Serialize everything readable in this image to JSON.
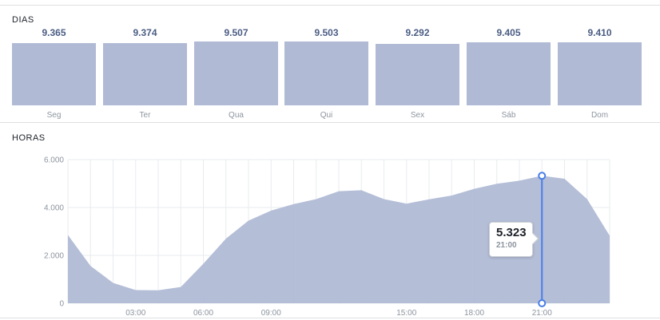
{
  "days_section": {
    "title": "DIAS",
    "days": [
      {
        "label": "Seg",
        "value": "9.365"
      },
      {
        "label": "Ter",
        "value": "9.374"
      },
      {
        "label": "Qua",
        "value": "9.507"
      },
      {
        "label": "Qui",
        "value": "9.503"
      },
      {
        "label": "Sex",
        "value": "9.292"
      },
      {
        "label": "Sáb",
        "value": "9.405"
      },
      {
        "label": "Dom",
        "value": "9.410"
      }
    ]
  },
  "hours_section": {
    "title": "HORAS"
  },
  "tooltip": {
    "value": "5.323",
    "time": "21:00"
  },
  "colors": {
    "fill": "#b0bad5",
    "cursor": "#4a7ee8",
    "value_text": "#4b5d84"
  },
  "chart_data": [
    {
      "type": "bar",
      "categories": [
        "Seg",
        "Ter",
        "Qua",
        "Qui",
        "Sex",
        "Sáb",
        "Dom"
      ],
      "values": [
        9365,
        9374,
        9507,
        9503,
        9292,
        9405,
        9410
      ],
      "title": "DIAS"
    },
    {
      "type": "area",
      "title": "HORAS",
      "x": [
        0,
        1,
        2,
        3,
        4,
        5,
        6,
        7,
        8,
        9,
        10,
        11,
        12,
        13,
        14,
        15,
        16,
        17,
        18,
        19,
        20,
        21,
        22,
        23,
        24
      ],
      "series": [
        {
          "values": [
            2850,
            1560,
            850,
            550,
            540,
            680,
            1650,
            2700,
            3450,
            3870,
            4140,
            4350,
            4680,
            4720,
            4350,
            4160,
            4340,
            4500,
            4780,
            4990,
            5120,
            5323,
            5200,
            4350,
            2820
          ]
        }
      ],
      "x_tick_labels": [
        {
          "x": 3,
          "label": "03:00"
        },
        {
          "x": 6,
          "label": "06:00"
        },
        {
          "x": 9,
          "label": "09:00"
        },
        {
          "x": 15,
          "label": "15:00"
        },
        {
          "x": 18,
          "label": "18:00"
        },
        {
          "x": 21,
          "label": "21:00"
        }
      ],
      "y_tick_labels": [
        {
          "y": 0,
          "label": "0"
        },
        {
          "y": 2000,
          "label": "2.000"
        },
        {
          "y": 4000,
          "label": "4.000"
        },
        {
          "y": 6000,
          "label": "6.000"
        }
      ],
      "xlim": [
        0,
        24
      ],
      "ylim": [
        0,
        6000
      ],
      "grid": true,
      "highlight": {
        "x": 21,
        "y": 5323
      }
    }
  ]
}
